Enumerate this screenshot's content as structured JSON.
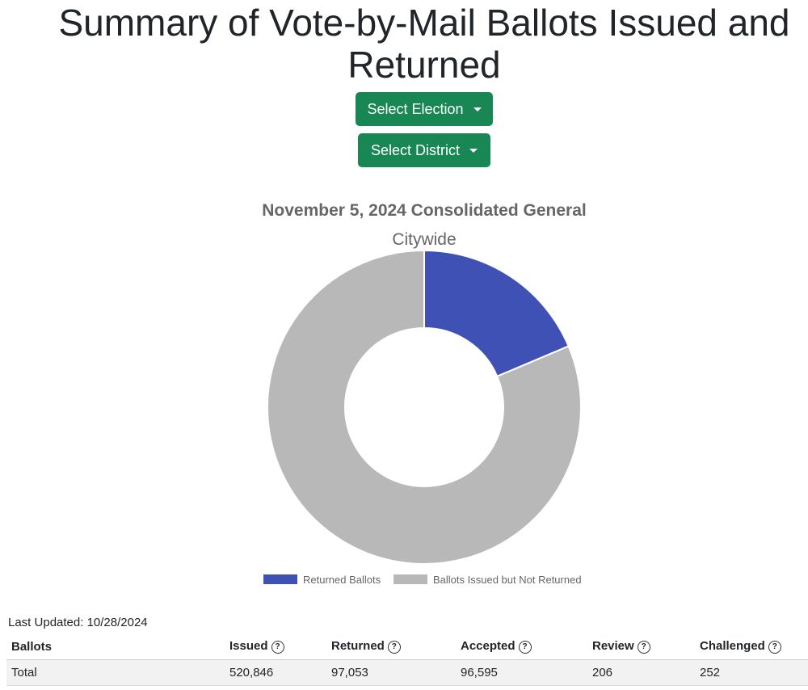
{
  "page": {
    "title": "Summary of Vote-by-Mail Ballots Issued and Returned",
    "select_election_label": "Select Election",
    "select_district_label": "Select District",
    "last_updated": "Last Updated: 10/28/2024",
    "accent_color": "#198754"
  },
  "chart_data": {
    "type": "pie",
    "title": "November 5, 2024 Consolidated General",
    "subtitle": "Citywide",
    "series": [
      {
        "name": "Returned Ballots",
        "value": 97053,
        "color": "#3f51b5"
      },
      {
        "name": "Ballots Issued but Not Returned",
        "value": 423793,
        "color": "#b8b8b8"
      }
    ],
    "legend_position": "bottom",
    "donut": true
  },
  "table": {
    "headers": [
      "Ballots",
      "Issued",
      "Returned",
      "Accepted",
      "Review",
      "Challenged"
    ],
    "rows": [
      [
        "Total",
        "520,846",
        "97,053",
        "96,595",
        "206",
        "252"
      ]
    ]
  }
}
